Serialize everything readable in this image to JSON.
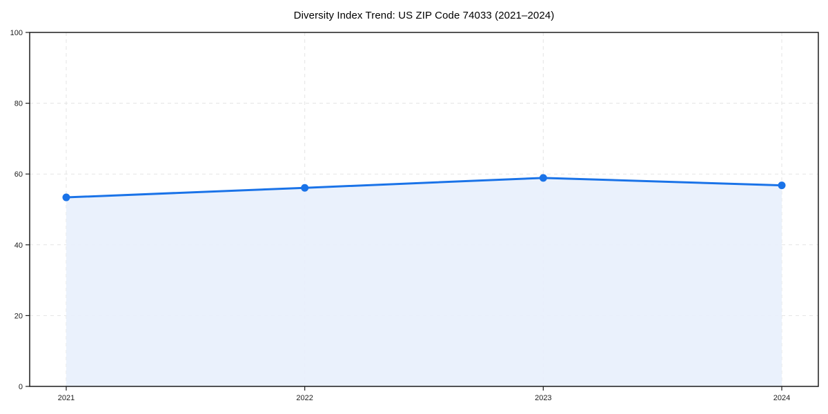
{
  "chart_data": {
    "type": "area",
    "title": "Diversity Index Trend: US ZIP Code 74033 (2021–2024)",
    "x": [
      "2021",
      "2022",
      "2023",
      "2024"
    ],
    "series": [
      {
        "name": "Diversity Index",
        "values": [
          53.4,
          56.1,
          58.9,
          56.8
        ]
      }
    ],
    "xlabel": "",
    "ylabel": "",
    "ylim": [
      0,
      100
    ],
    "yticks": [
      0,
      20,
      40,
      60,
      80,
      100
    ],
    "grid": "dashed-both-axes",
    "legend": "none",
    "marker": "circle",
    "colors": {
      "line": "#1a73e8",
      "marker": "#1a73e8",
      "fill": "#e7effc",
      "grid": "#e3e3e3",
      "spine": "#1b1b1b",
      "tick_label": "#1c1c1c",
      "title": "#000000",
      "background": "#ffffff"
    }
  }
}
